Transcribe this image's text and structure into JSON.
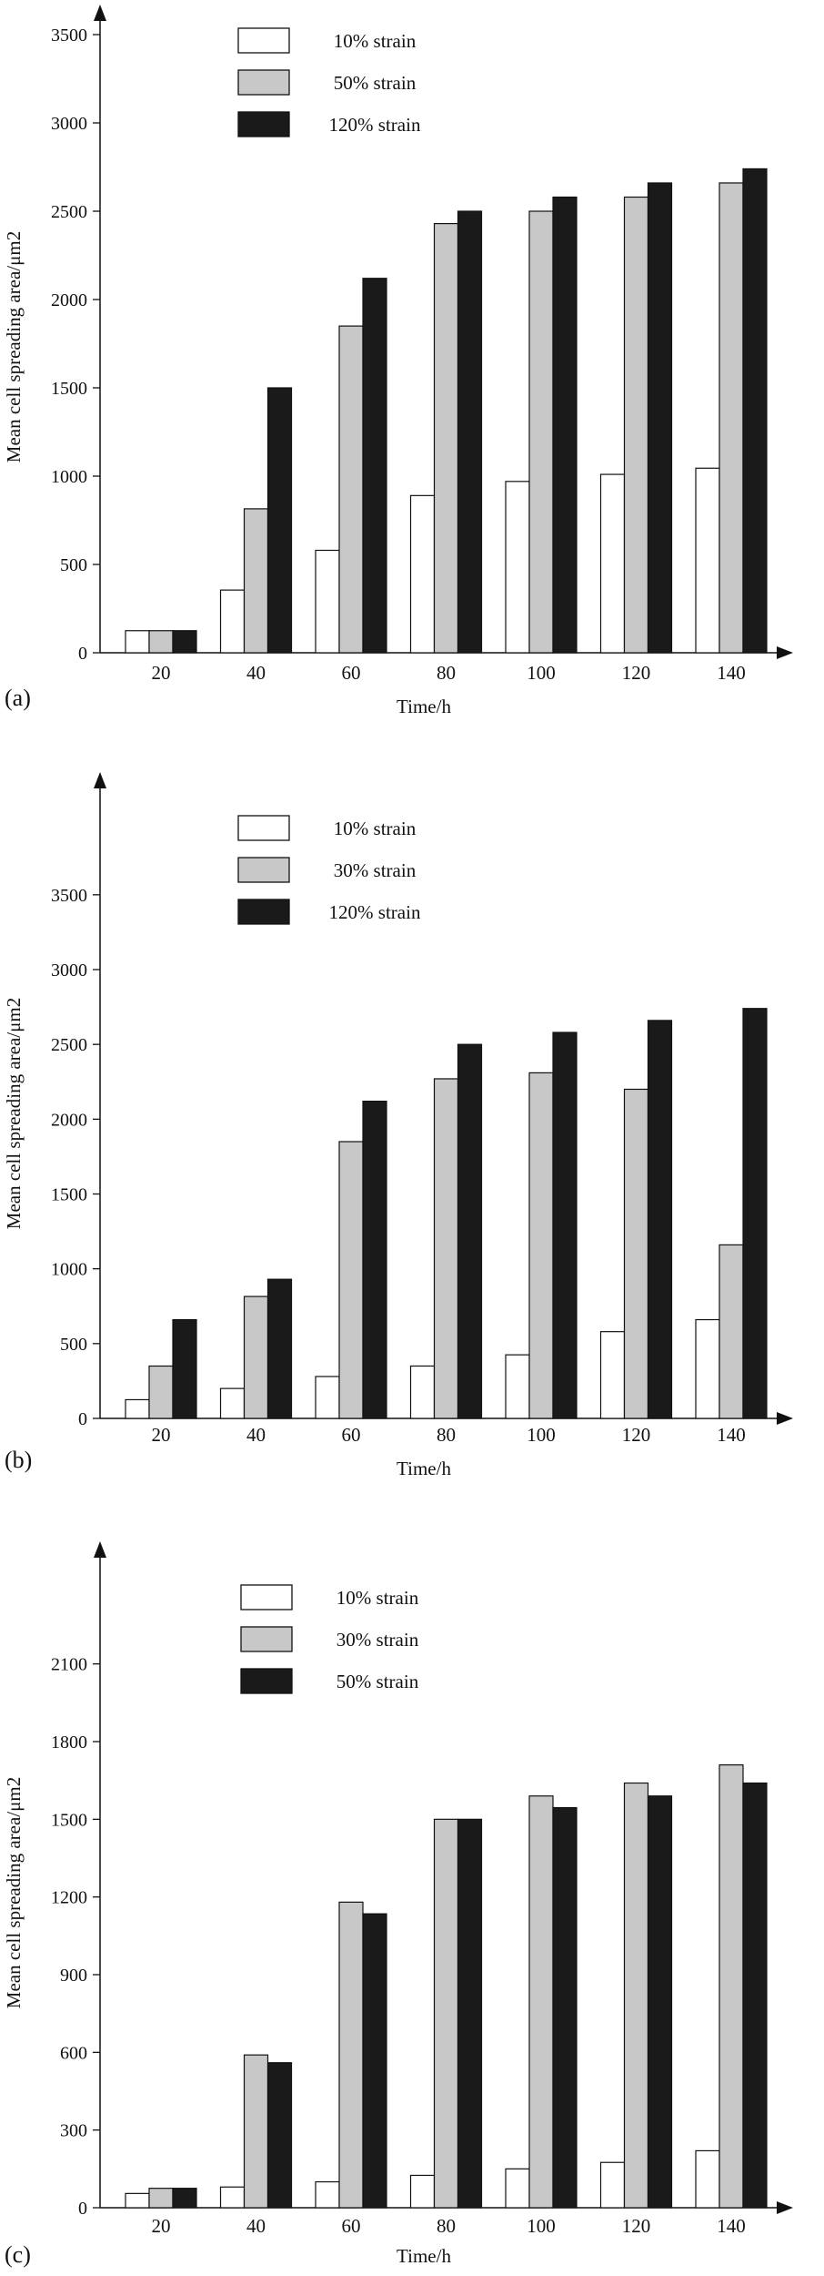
{
  "panel_labels": [
    "(a)",
    "(b)",
    "(c)"
  ],
  "colors": {
    "white_bar": "#ffffff",
    "gray_bar": "#c8c8c8",
    "black_bar": "#1a1a1a",
    "axis": "#111111"
  },
  "chart_data": [
    {
      "type": "bar",
      "xlabel": "Time/h",
      "ylabel": "Mean cell spreading area/μm2",
      "categories": [
        "20",
        "40",
        "60",
        "80",
        "100",
        "120",
        "140"
      ],
      "yticks": [
        0,
        500,
        1000,
        1500,
        2000,
        2500,
        3000,
        3500
      ],
      "ylim": [
        0,
        4200
      ],
      "legend_position": "top",
      "grid": false,
      "series": [
        {
          "name": "10% strain",
          "values": [
            125,
            355,
            580,
            890,
            970,
            1010,
            1045
          ]
        },
        {
          "name": "50% strain",
          "values": [
            125,
            815,
            1850,
            2430,
            2500,
            2580,
            2660
          ]
        },
        {
          "name": "120% strain",
          "values": [
            125,
            1500,
            2120,
            2500,
            2580,
            2660,
            2740
          ]
        }
      ]
    },
    {
      "type": "bar",
      "xlabel": "Time/h",
      "ylabel": "Mean cell spreading area/μm2",
      "categories": [
        "20",
        "40",
        "60",
        "80",
        "100",
        "120",
        "140"
      ],
      "yticks": [
        0,
        500,
        1000,
        1500,
        2000,
        2500,
        3000,
        3500
      ],
      "ylim": [
        0,
        4250
      ],
      "legend_position": "top",
      "grid": false,
      "series": [
        {
          "name": "10% strain",
          "values": [
            125,
            200,
            280,
            350,
            425,
            580,
            660
          ]
        },
        {
          "name": "30% strain",
          "values": [
            350,
            815,
            1850,
            2270,
            2310,
            2200,
            1160
          ]
        },
        {
          "name": "120% strain",
          "values": [
            660,
            930,
            2120,
            2500,
            2580,
            2660,
            2740
          ]
        }
      ]
    },
    {
      "type": "bar",
      "xlabel": "Time/h",
      "ylabel": "Mean cell spreading area/μm2",
      "categories": [
        "20",
        "40",
        "60",
        "80",
        "100",
        "120",
        "140"
      ],
      "yticks": [
        0,
        300,
        600,
        900,
        1200,
        1500,
        1800,
        2100
      ],
      "ylim": [
        0,
        2550
      ],
      "legend_position": "top",
      "grid": false,
      "series": [
        {
          "name": "10% strain",
          "values": [
            55,
            80,
            100,
            125,
            150,
            175,
            220
          ]
        },
        {
          "name": "30% strain",
          "values": [
            75,
            590,
            1180,
            1500,
            1590,
            1640,
            1710
          ]
        },
        {
          "name": "50% strain",
          "values": [
            75,
            560,
            1135,
            1500,
            1545,
            1590,
            1640
          ]
        }
      ]
    }
  ]
}
